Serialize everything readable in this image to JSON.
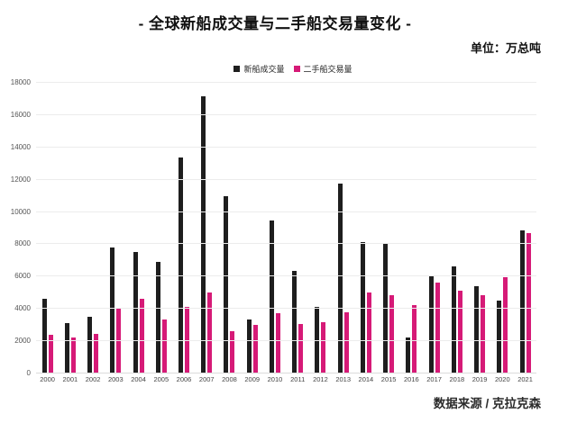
{
  "header": {
    "title": "- 全球新船成交量与二手船交易量变化 -",
    "unit": "单位：万总吨"
  },
  "legend": [
    {
      "label": "新船成交量",
      "color": "#1e1e1e"
    },
    {
      "label": "二手船交易量",
      "color": "#d61a77"
    }
  ],
  "footer": {
    "source": "数据来源 / 克拉克森"
  },
  "chart_data": {
    "type": "bar",
    "title": "- 全球新船成交量与二手船交易量变化 -",
    "unit": "万总吨",
    "categories": [
      "2000",
      "2001",
      "2002",
      "2003",
      "2004",
      "2005",
      "2006",
      "2007",
      "2008",
      "2009",
      "2010",
      "2011",
      "2012",
      "2013",
      "2014",
      "2015",
      "2016",
      "2017",
      "2018",
      "2019",
      "2020",
      "2021"
    ],
    "series": [
      {
        "name": "新船成交量",
        "color": "#1e1e1e",
        "values": [
          4650,
          3100,
          3500,
          7800,
          7550,
          6900,
          13400,
          17150,
          11000,
          3350,
          9450,
          6350,
          4100,
          11750,
          8150,
          8100,
          2250,
          6000,
          6650,
          5400,
          4500,
          8850
        ]
      },
      {
        "name": "二手船交易量",
        "color": "#d61a77",
        "values": [
          2400,
          2250,
          2450,
          4000,
          4650,
          3350,
          4100,
          5000,
          2600,
          3000,
          3750,
          3050,
          3200,
          3800,
          5000,
          4850,
          4250,
          5650,
          5150,
          4850,
          5950,
          8700
        ]
      }
    ],
    "xlabel": "",
    "ylabel": "",
    "ylim": [
      0,
      18000
    ],
    "yticks": [
      0,
      2000,
      4000,
      6000,
      8000,
      10000,
      12000,
      14000,
      16000,
      18000
    ],
    "grid": true,
    "legend_position": "top-center",
    "source": "数据来源 / 克拉克森"
  }
}
